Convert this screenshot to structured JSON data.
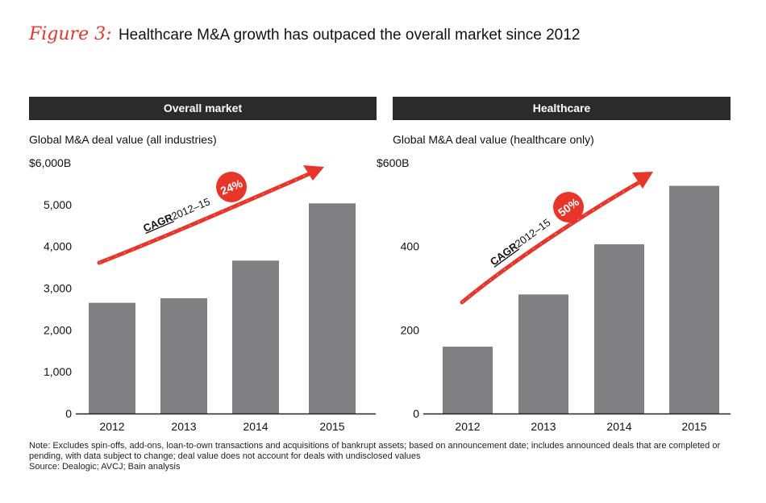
{
  "figure": {
    "label": "Figure 3:",
    "title": "Healthcare M&A growth has outpaced the overall market since 2012"
  },
  "colors": {
    "accent": "#e8352a",
    "bar": "#808083",
    "header_bg": "#2b2b2b"
  },
  "chart_data": [
    {
      "type": "bar",
      "header": "Overall market",
      "title": "Global M&A deal value (all industries)",
      "categories": [
        "2012",
        "2013",
        "2014",
        "2015"
      ],
      "values": [
        2650,
        2760,
        3660,
        5030
      ],
      "ylim": [
        0,
        6000
      ],
      "yticks": [
        {
          "value": 0,
          "label": "0"
        },
        {
          "value": 1000,
          "label": "1,000"
        },
        {
          "value": 2000,
          "label": "2,000"
        },
        {
          "value": 3000,
          "label": "3,000"
        },
        {
          "value": 4000,
          "label": "4,000"
        },
        {
          "value": 5000,
          "label": "5,000"
        },
        {
          "value": 6000,
          "label": "$6,000B"
        }
      ],
      "annotation": {
        "cagr_label": "CAGR",
        "period": "2012–15",
        "value": "24%"
      }
    },
    {
      "type": "bar",
      "header": "Healthcare",
      "title": "Global M&A deal value (healthcare only)",
      "categories": [
        "2012",
        "2013",
        "2014",
        "2015"
      ],
      "values": [
        160,
        285,
        405,
        545
      ],
      "ylim": [
        0,
        600
      ],
      "yticks": [
        {
          "value": 0,
          "label": "0"
        },
        {
          "value": 200,
          "label": "200"
        },
        {
          "value": 400,
          "label": "400"
        },
        {
          "value": 600,
          "label": "$600B"
        }
      ],
      "annotation": {
        "cagr_label": "CAGR",
        "period": "2012–15",
        "value": "50%"
      }
    }
  ],
  "notes": {
    "note": "Note: Excludes spin-offs, add-ons, loan-to-own transactions and acquisitions of bankrupt assets; based on announcement date; includes announced deals that are completed or pending, with data subject to change; deal value does not account for deals with undisclosed values",
    "source": "Source: Dealogic; AVCJ; Bain analysis"
  }
}
